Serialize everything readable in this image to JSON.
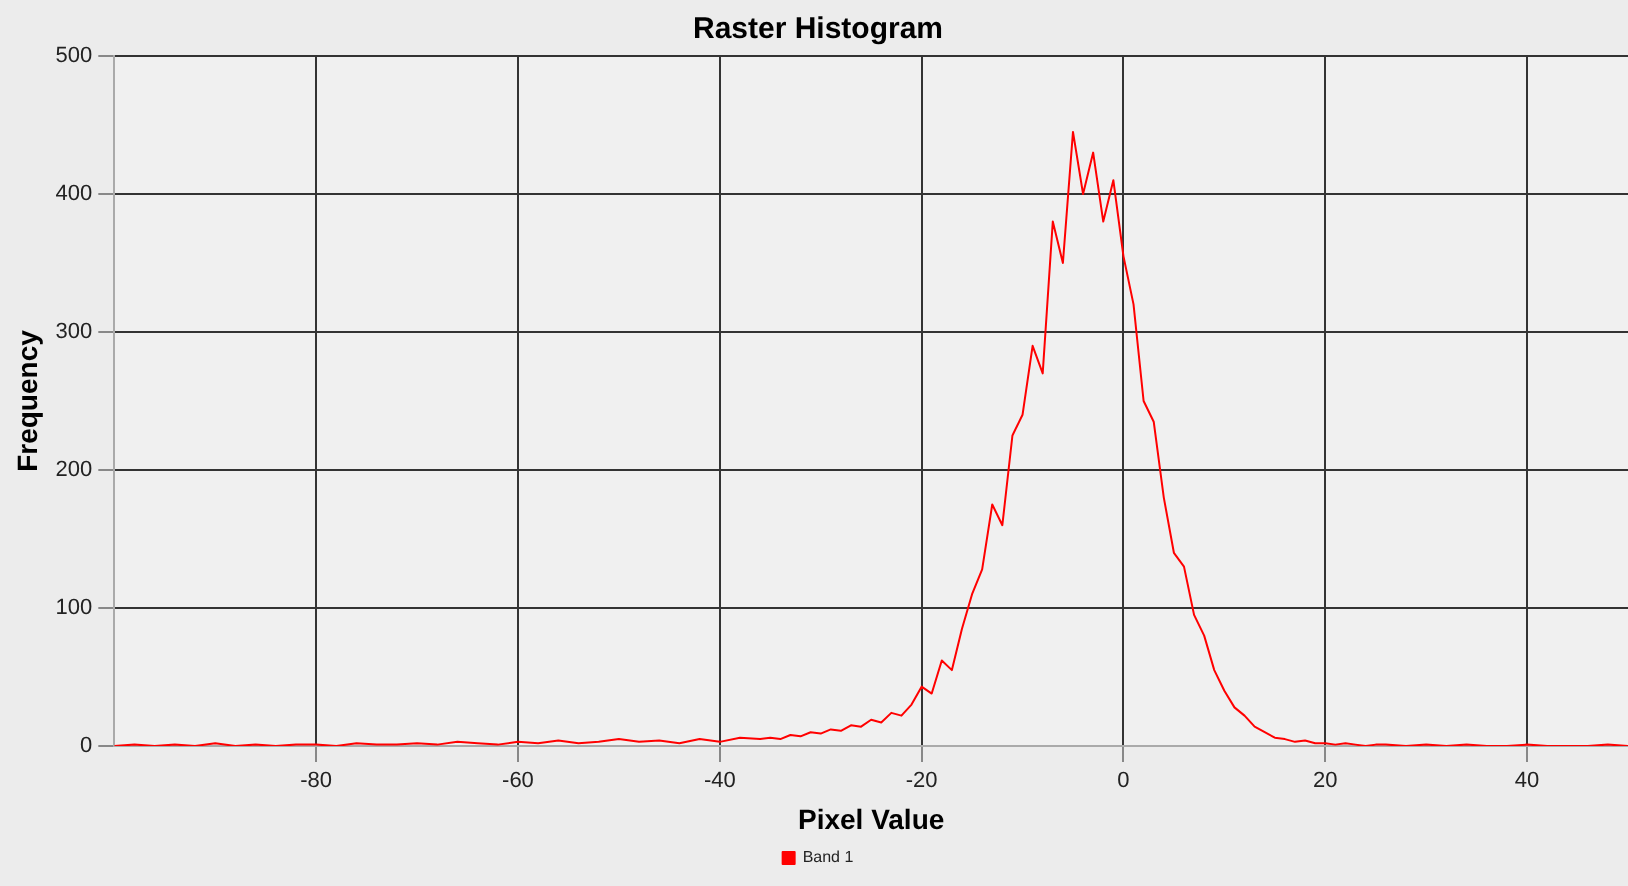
{
  "chart_data": {
    "type": "line",
    "title": "Raster Histogram",
    "xlabel": "Pixel Value",
    "ylabel": "Frequency",
    "xlim": [
      -100,
      50
    ],
    "xticks": [
      -80,
      -60,
      -40,
      -20,
      0,
      20,
      40
    ],
    "ylim": [
      0,
      500
    ],
    "yticks": [
      0,
      100,
      200,
      300,
      400,
      500
    ],
    "grid": true,
    "legend": "bottom",
    "marker": "none",
    "line_style": "solid",
    "series": [
      {
        "name": "Band 1",
        "color": "#ff0000",
        "x": [
          -100,
          -98,
          -96,
          -94,
          -92,
          -90,
          -88,
          -86,
          -84,
          -82,
          -80,
          -78,
          -76,
          -74,
          -72,
          -70,
          -68,
          -66,
          -64,
          -62,
          -60,
          -58,
          -56,
          -54,
          -52,
          -50,
          -48,
          -46,
          -44,
          -42,
          -40,
          -38,
          -36,
          -35,
          -34,
          -33,
          -32,
          -31,
          -30,
          -29,
          -28,
          -27,
          -26,
          -25,
          -24,
          -23,
          -22,
          -21,
          -20,
          -19,
          -18,
          -17,
          -16,
          -15,
          -14,
          -13,
          -12,
          -11,
          -10,
          -9,
          -8,
          -7,
          -6,
          -5,
          -4,
          -3,
          -2,
          -1,
          0,
          1,
          2,
          3,
          4,
          5,
          6,
          7,
          8,
          9,
          10,
          11,
          12,
          13,
          14,
          15,
          16,
          17,
          18,
          19,
          20,
          21,
          22,
          23,
          24,
          25,
          26,
          28,
          30,
          32,
          34,
          36,
          38,
          40,
          42,
          44,
          46,
          48,
          50
        ],
        "values": [
          0,
          1,
          0,
          1,
          0,
          2,
          0,
          1,
          0,
          1,
          1,
          0,
          2,
          1,
          1,
          2,
          1,
          3,
          2,
          1,
          3,
          2,
          4,
          2,
          3,
          5,
          3,
          4,
          2,
          5,
          3,
          6,
          5,
          6,
          5,
          8,
          7,
          10,
          9,
          12,
          11,
          15,
          14,
          19,
          17,
          24,
          22,
          30,
          43,
          38,
          62,
          55,
          85,
          110,
          128,
          175,
          160,
          225,
          240,
          290,
          270,
          380,
          350,
          445,
          400,
          430,
          380,
          410,
          355,
          320,
          250,
          235,
          180,
          140,
          130,
          95,
          80,
          55,
          40,
          28,
          22,
          14,
          10,
          6,
          5,
          3,
          4,
          2,
          2,
          1,
          2,
          1,
          0,
          1,
          1,
          0,
          1,
          0,
          1,
          0,
          0,
          1,
          0,
          0,
          0,
          1,
          0
        ]
      }
    ]
  }
}
